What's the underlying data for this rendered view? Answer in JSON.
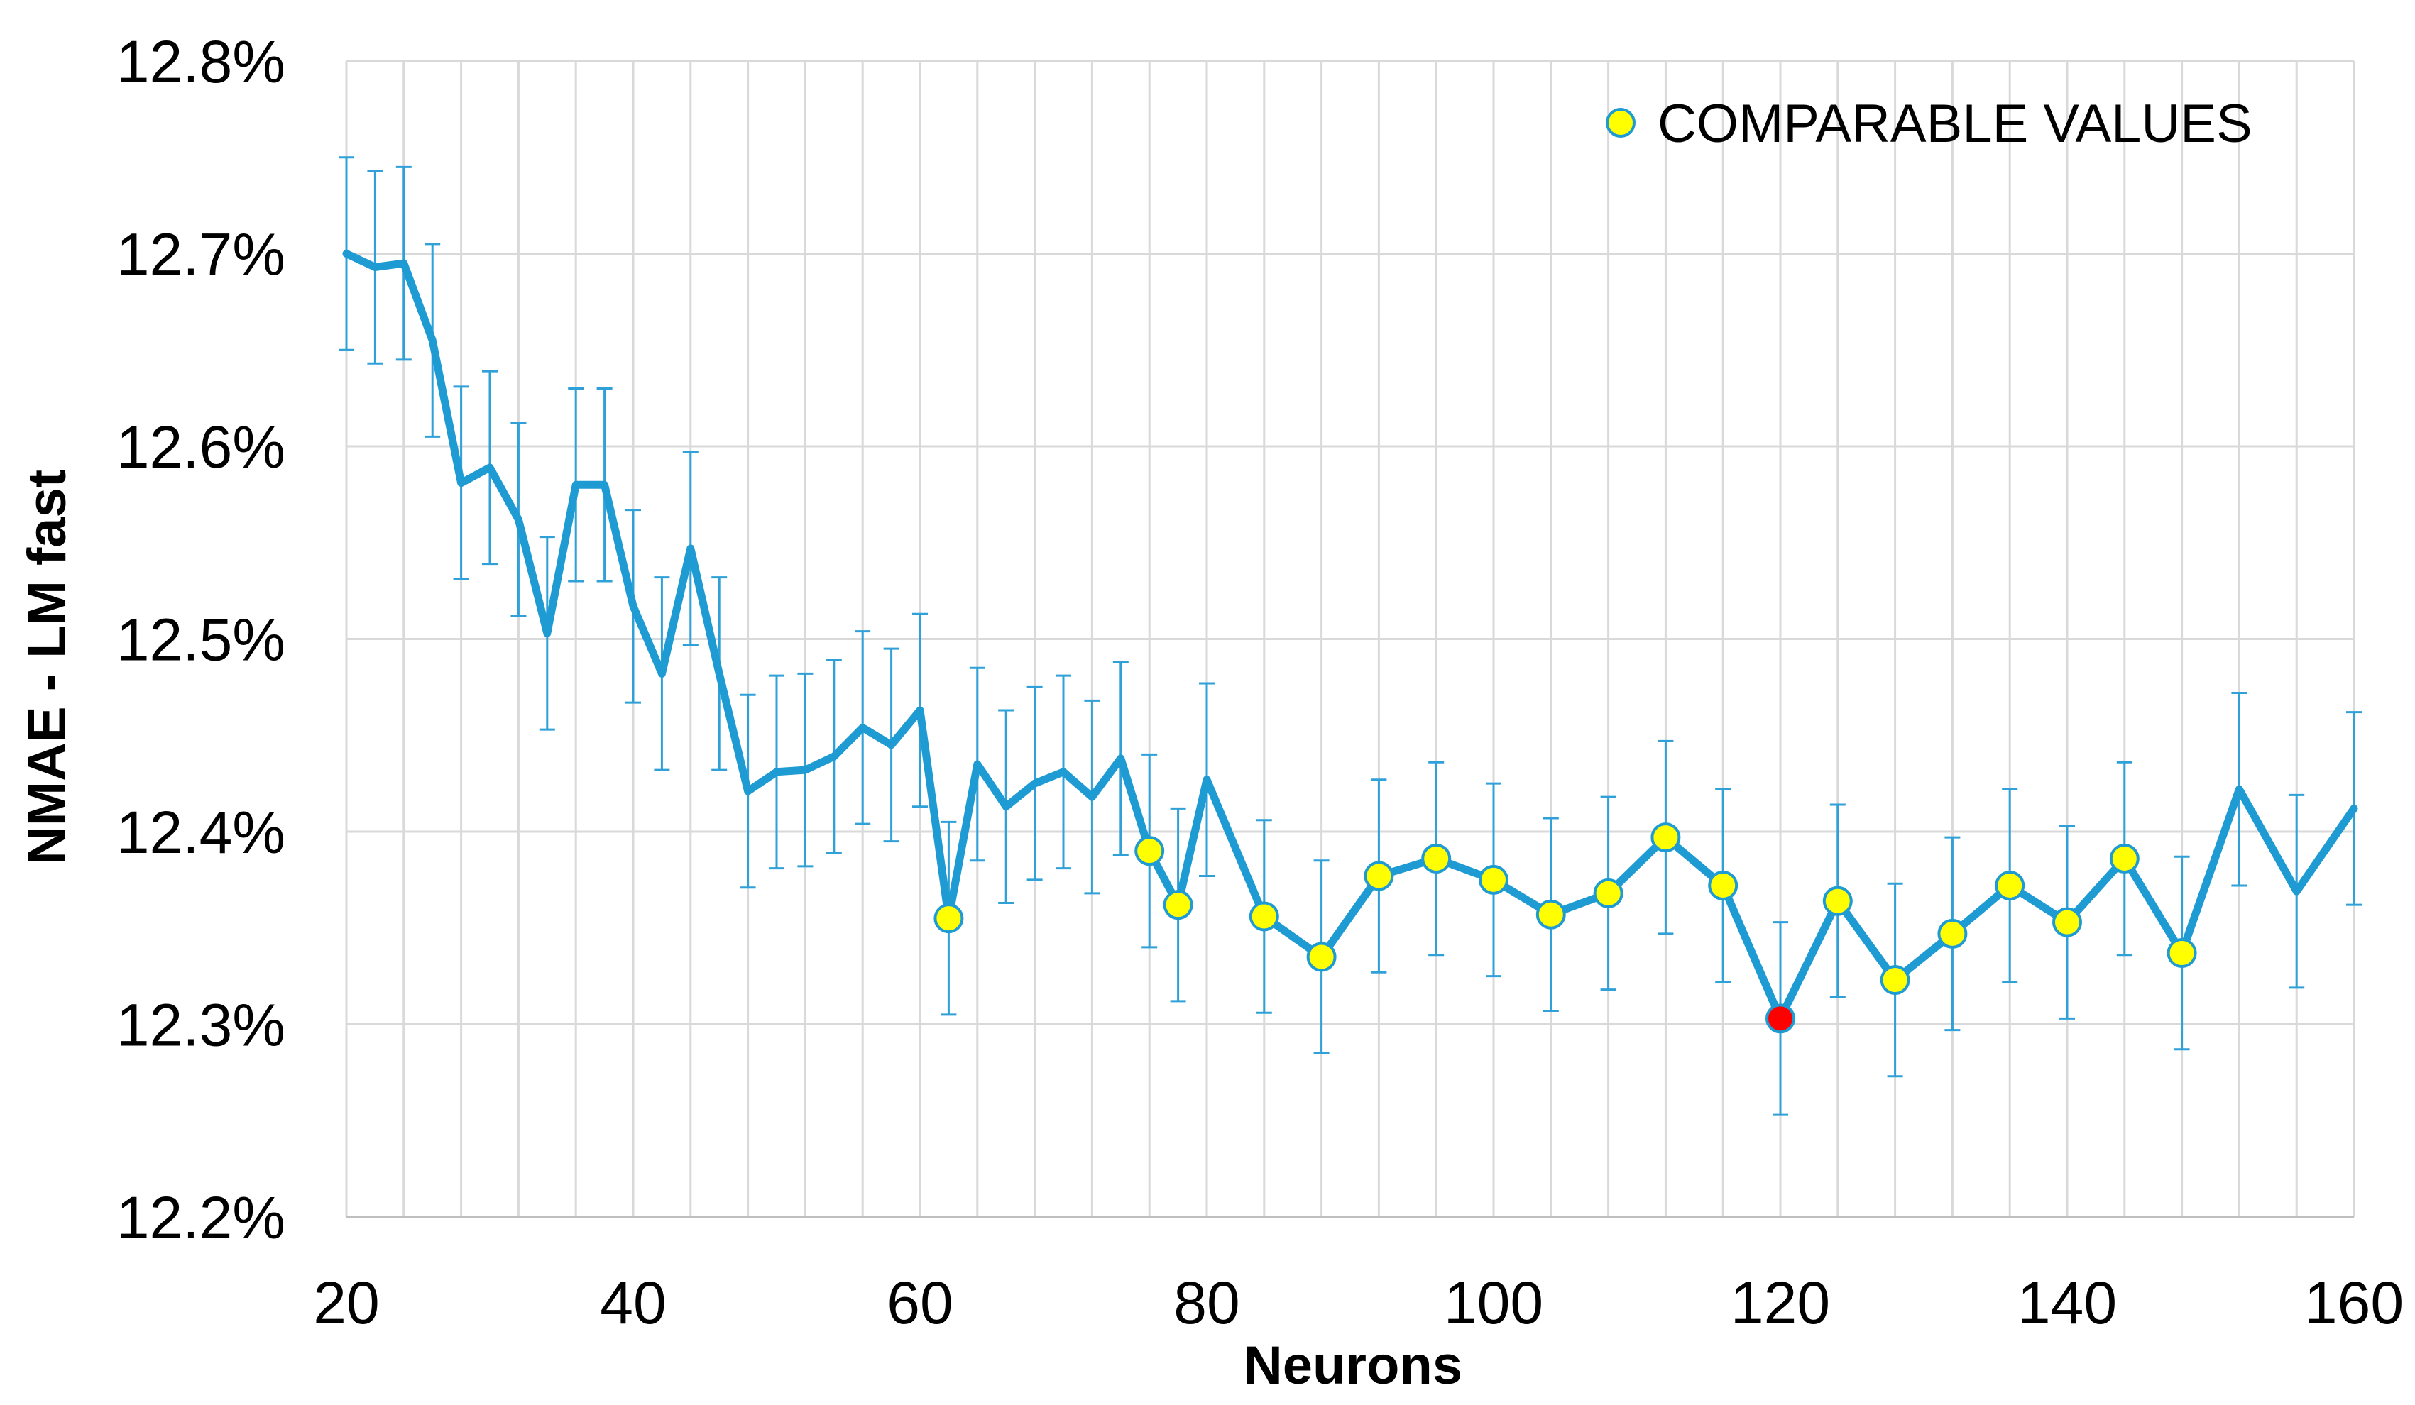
{
  "chart_data": {
    "type": "line",
    "xlabel": "Neurons",
    "ylabel": "NMAE - LM fast",
    "xlim": [
      20,
      160
    ],
    "ylim": [
      12.2,
      12.8
    ],
    "x_ticks": [
      20,
      40,
      60,
      80,
      100,
      120,
      140,
      160
    ],
    "y_ticks": [
      12.2,
      12.3,
      12.4,
      12.5,
      12.6,
      12.7,
      12.8
    ],
    "y_tick_labels": [
      "12.2%",
      "12.3%",
      "12.4%",
      "12.5%",
      "12.6%",
      "12.7%",
      "12.8%"
    ],
    "y_unit": "%",
    "x_minor_grid_step": 4,
    "grid": true,
    "legend": {
      "position": "top-right",
      "entries": [
        {
          "label": "COMPARABLE VALUES",
          "marker_color": "#ffff00"
        }
      ]
    },
    "colors": {
      "line": "#1f9bd4",
      "error_bar": "#2fa0d8",
      "comparable_marker": "#ffff00",
      "best_marker": "#ff0000",
      "grid": "#d9d9d9"
    },
    "error_bar_half_width": 0.05,
    "series": [
      {
        "x": [
          20,
          22,
          24,
          26,
          28,
          30,
          32,
          34,
          36,
          38,
          40,
          42,
          44,
          46,
          48,
          50,
          52,
          54,
          56,
          58,
          60,
          62,
          64,
          66,
          68,
          70,
          72,
          74,
          76,
          78,
          80,
          84,
          88,
          92,
          96,
          100,
          104,
          108,
          112,
          116,
          120,
          124,
          128,
          132,
          136,
          140,
          144,
          148,
          152,
          156,
          160
        ],
        "y": [
          12.7,
          12.693,
          12.695,
          12.655,
          12.581,
          12.589,
          12.562,
          12.503,
          12.58,
          12.58,
          12.517,
          12.482,
          12.547,
          12.482,
          12.421,
          12.431,
          12.432,
          12.439,
          12.454,
          12.445,
          12.463,
          12.355,
          12.435,
          12.413,
          12.425,
          12.431,
          12.418,
          12.438,
          12.39,
          12.362,
          12.427,
          12.356,
          12.335,
          12.377,
          12.386,
          12.375,
          12.357,
          12.368,
          12.397,
          12.372,
          12.303,
          12.364,
          12.323,
          12.347,
          12.372,
          12.353,
          12.386,
          12.337,
          12.422,
          12.369,
          12.412
        ]
      }
    ],
    "comparable_points": [
      62,
      76,
      78,
      84,
      88,
      92,
      96,
      100,
      104,
      108,
      112,
      116,
      124,
      128,
      132,
      136,
      140,
      144,
      148
    ],
    "best_point": 120
  }
}
